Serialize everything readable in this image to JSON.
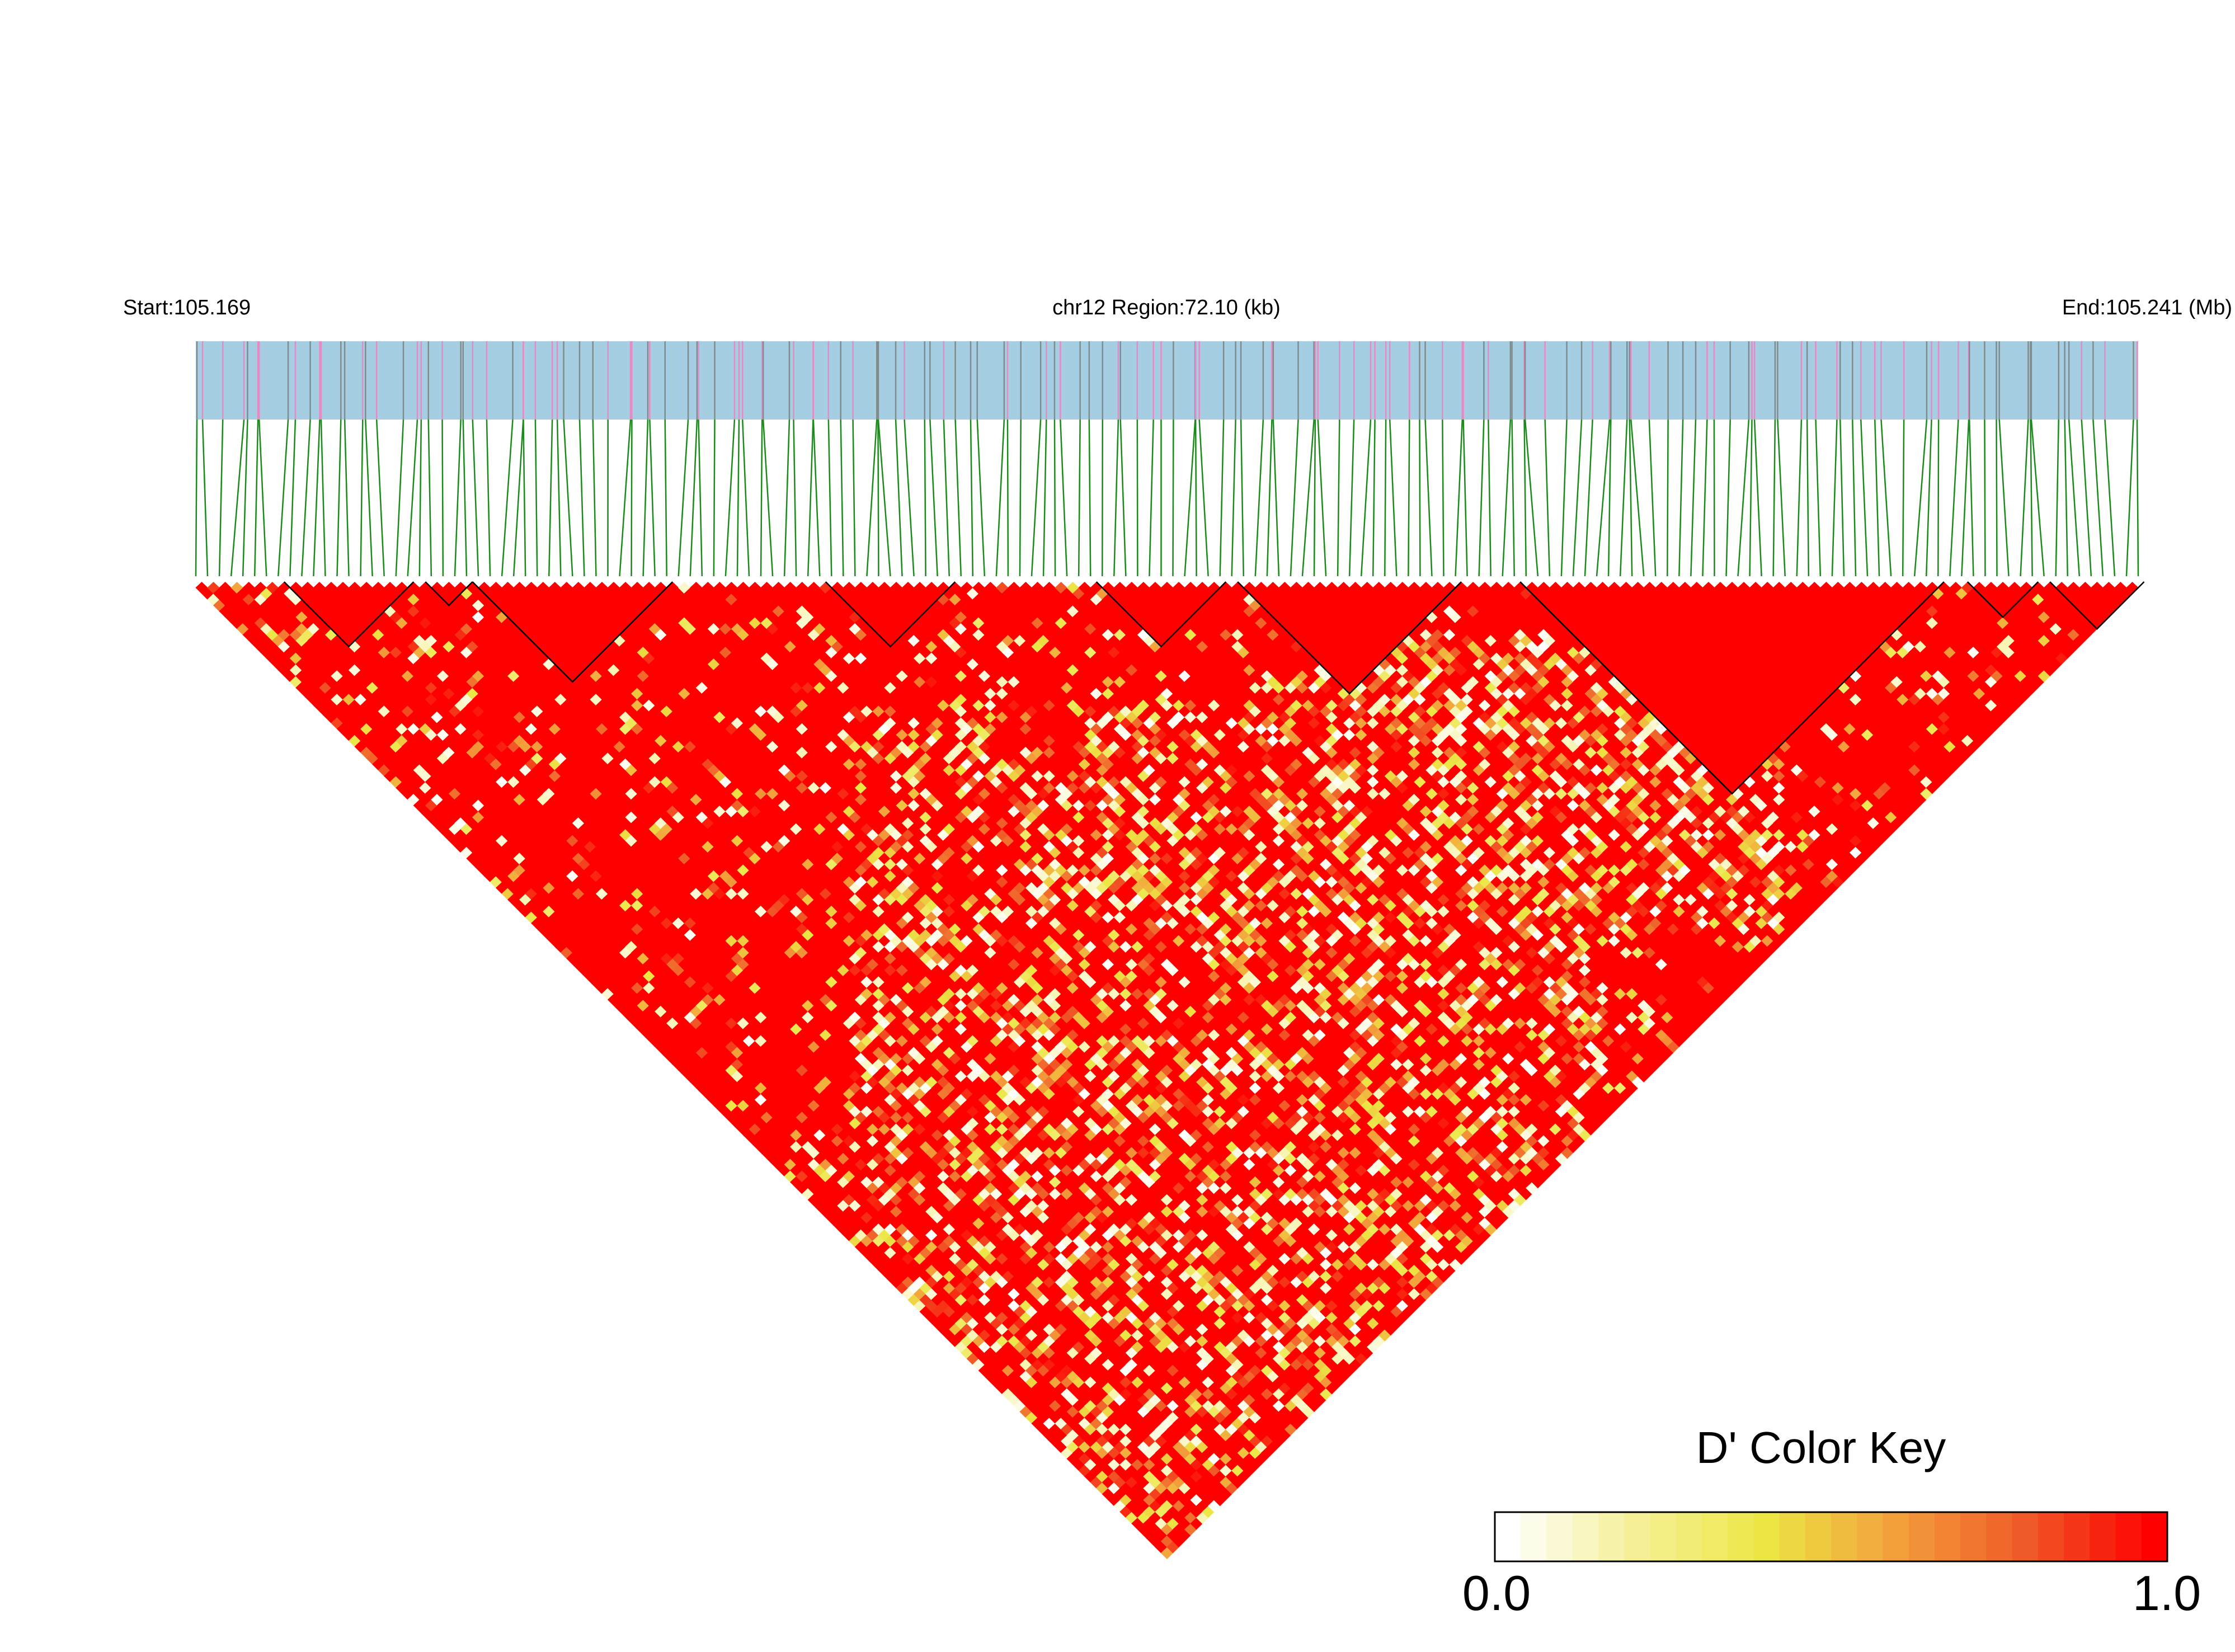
{
  "chart_data": {
    "type": "heatmap",
    "subtype": "LD triangle heatmap (D')",
    "header": {
      "start_label": "Start:105.169",
      "region_label": "chr12 Region:72.10 (kb)",
      "end_label": "End:105.241 (Mb)"
    },
    "region": {
      "chromosome": "chr12",
      "start_mb": 105.169,
      "end_mb": 105.241,
      "length_kb": 72.1
    },
    "n_snps": 166,
    "snp_track_colors": {
      "background": "#a6cee3",
      "marker_pink": "#e78ac3",
      "marker_grey": "#7f8c8d",
      "connector_green": "#1a8a1a"
    },
    "haplotype_blocks": [
      {
        "start_index": 8,
        "end_index": 18
      },
      {
        "start_index": 20,
        "end_index": 23
      },
      {
        "start_index": 24,
        "end_index": 40
      },
      {
        "start_index": 54,
        "end_index": 64
      },
      {
        "start_index": 77,
        "end_index": 87
      },
      {
        "start_index": 89,
        "end_index": 107
      },
      {
        "start_index": 113,
        "end_index": 148
      },
      {
        "start_index": 151,
        "end_index": 156
      },
      {
        "start_index": 158,
        "end_index": 165
      }
    ],
    "color_scale": {
      "title": "D' Color Key",
      "min_label": "0.0",
      "max_label": "1.0",
      "min": 0.0,
      "max": 1.0,
      "stops": [
        "#ffffff",
        "#f5f096",
        "#ece645",
        "#f3a03c",
        "#f05a28",
        "#ff0000"
      ]
    },
    "cell_distribution": {
      "dominant_value": 1.0,
      "note": "values read as categories: mostly D'=1.0 (red) with scattered lower values"
    }
  }
}
